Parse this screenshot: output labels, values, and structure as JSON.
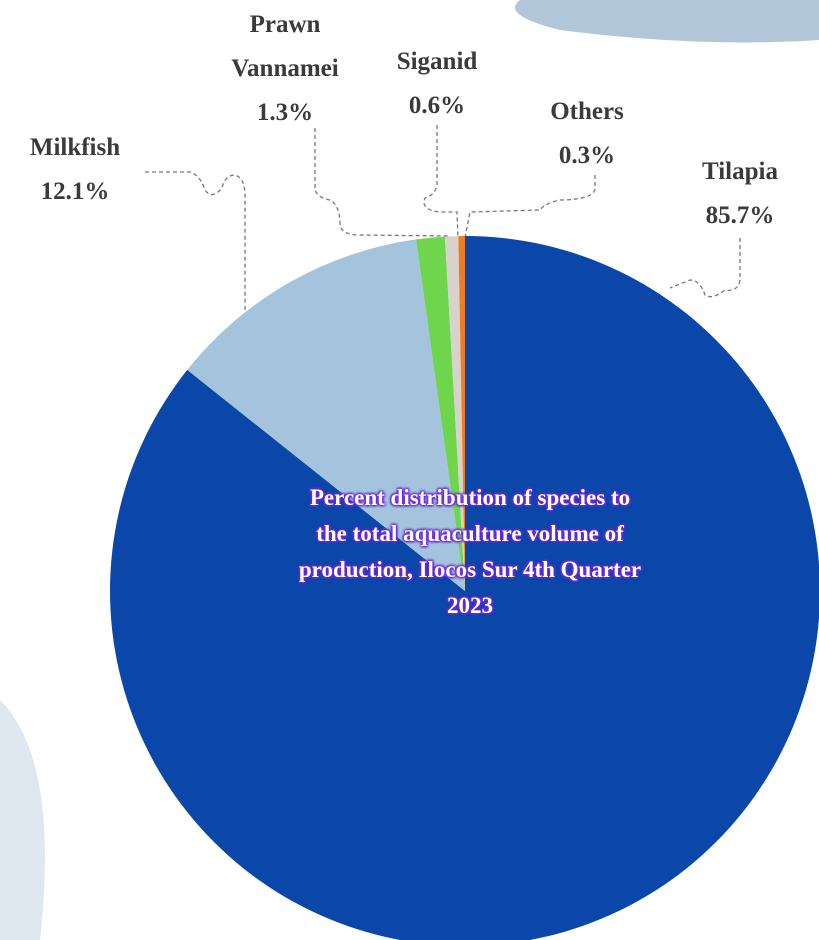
{
  "chart_data": {
    "type": "pie",
    "title": "Percent distribution of species to the total aquaculture volume of production, Ilocos Sur 4th Quarter 2023",
    "categories": [
      "Tilapia",
      "Milkfish",
      "Prawn Vannamei",
      "Siganid",
      "Others"
    ],
    "values": [
      85.7,
      12.1,
      1.3,
      0.6,
      0.3
    ],
    "value_labels": [
      "85.7%",
      "12.1%",
      "1.3%",
      "0.6%",
      "0.3%"
    ],
    "colors": [
      "#0a47a8",
      "#a3c4dc",
      "#6fd54d",
      "#d9d2cc",
      "#f07b21"
    ]
  }
}
